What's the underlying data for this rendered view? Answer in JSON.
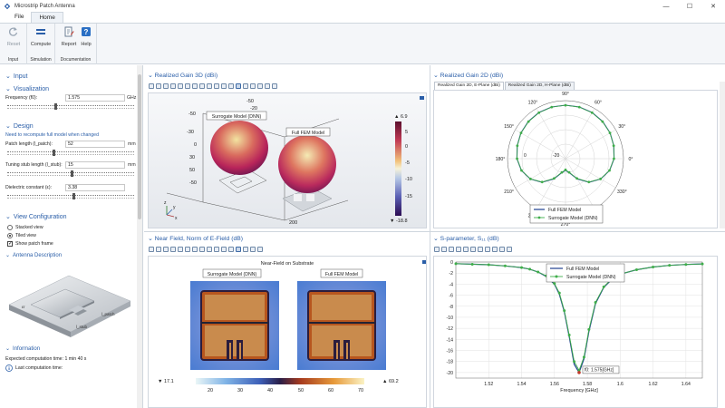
{
  "window": {
    "title": "Microstrip Patch Antenna",
    "minimize": "—",
    "maximize": "☐",
    "close": "✕"
  },
  "menu": {
    "file": "File",
    "home": "Home"
  },
  "ribbon": {
    "reset": "Reset",
    "compute": "Compute",
    "report": "Report",
    "help": "Help",
    "group_input": "Input",
    "group_simulation": "Simulation",
    "group_documentation": "Documentation"
  },
  "left": {
    "input_header": "Input",
    "visualization_header": "Visualization",
    "frequency_label": "Frequency (f0):",
    "frequency_value": "1.575",
    "frequency_unit": "GHz",
    "design_header": "Design",
    "recompute_link": "Need to recompute full model when changed",
    "patch_length_label": "Patch length (l_patch):",
    "patch_length_value": "52",
    "patch_length_unit": "mm",
    "stub_length_label": "Tuning stub length (l_stub):",
    "stub_length_value": "15",
    "stub_length_unit": "mm",
    "dielectric_label": "Dielectric constant (ε):",
    "dielectric_value": "3.38",
    "view_header": "View Configuration",
    "stacked": "Stacked view",
    "tiled": "Tiled view",
    "show_frame": "Show patch frame",
    "antenna_header": "Antenna Description",
    "lbl_patch": "l_patch",
    "lbl_stub": "l_stub",
    "lbl_e": "εr",
    "info_header": "Information",
    "expected_time": "Expected computation time: 1 min 40 s",
    "last_time": "Last computation time:"
  },
  "gain3d": {
    "title": "Realized Gain 3D (dBi)",
    "dnn_label": "Surrogate Model (DNN)",
    "fem_label": "Full FEM Model",
    "axis_ticks": [
      "-50",
      "-30",
      "30",
      "50",
      "-50",
      "0",
      "-20",
      "-50"
    ],
    "axis_200": "200",
    "cb_top": "▲ 6.9",
    "cb_bottom": "▼ -18.8",
    "cb_ticks": [
      "5",
      "0",
      "-5",
      "-10",
      "-15"
    ],
    "x": "x",
    "y": "y",
    "z": "z"
  },
  "gain2d": {
    "title": "Realized Gain 2D (dBi)",
    "tab_e": "Realized Gain 2D, E-Plane (dBi)",
    "tab_h": "Realized Gain 2D, H-Plane (dBi)",
    "angles": [
      "90°",
      "60°",
      "30°",
      "0°",
      "330°",
      "300°",
      "270°",
      "240°",
      "210°",
      "180°",
      "150°",
      "120°"
    ],
    "radial": [
      "-20",
      "0"
    ],
    "legend_fem": "Full FEM Model",
    "legend_dnn": "Surrogate Model (DNN)"
  },
  "nearfield": {
    "title": "Near Field, Norm of E-Field (dB)",
    "plot_title": "Near-Field on Substrate",
    "dnn_label": "Surrogate Model (DNN)",
    "fem_label": "Full FEM Model",
    "cb_min": "▼ 17.1",
    "cb_max": "▲ 69.2",
    "cb_ticks": [
      "20",
      "30",
      "40",
      "50",
      "60",
      "70"
    ]
  },
  "sparam": {
    "title": "S-parameter, S₁₁ (dB)",
    "legend_fem": "Full FEM Model",
    "legend_dnn": "Surrogate Model (DNN)",
    "annotation": "f0: 1.575[GHz]",
    "xlabel": "Frequency [GHz]"
  },
  "colors": {
    "accent": "#2a5ea8",
    "fem": "#1f3f8f",
    "dnn": "#3fae4a"
  },
  "chart_data": [
    {
      "type": "line",
      "title": "S-parameter, S₁₁ (dB)",
      "xlabel": "Frequency [GHz]",
      "ylabel": "",
      "xlim": [
        1.5,
        1.65
      ],
      "ylim": [
        -21,
        0
      ],
      "xticks": [
        "1.52",
        "1.54",
        "1.56",
        "1.58",
        "1.6",
        "1.62",
        "1.64"
      ],
      "yticks": [
        "0",
        "-2",
        "-4",
        "-6",
        "-8",
        "-10",
        "-12",
        "-14",
        "-16",
        "-18",
        "-20"
      ],
      "series": [
        {
          "name": "Full FEM Model",
          "x": [
            1.5,
            1.51,
            1.52,
            1.53,
            1.54,
            1.545,
            1.55,
            1.555,
            1.56,
            1.563,
            1.566,
            1.569,
            1.572,
            1.575,
            1.578,
            1.581,
            1.585,
            1.59,
            1.595,
            1.6,
            1.61,
            1.62,
            1.63,
            1.64,
            1.65
          ],
          "y": [
            -0.3,
            -0.4,
            -0.5,
            -0.7,
            -1.0,
            -1.3,
            -1.8,
            -2.6,
            -4.0,
            -5.8,
            -9.0,
            -13.5,
            -18.5,
            -20.0,
            -17.5,
            -12.5,
            -7.5,
            -4.6,
            -3.1,
            -2.2,
            -1.4,
            -0.9,
            -0.6,
            -0.45,
            -0.35
          ]
        },
        {
          "name": "Surrogate Model (DNN)",
          "x": [
            1.5,
            1.51,
            1.52,
            1.53,
            1.54,
            1.545,
            1.55,
            1.555,
            1.56,
            1.563,
            1.566,
            1.569,
            1.572,
            1.575,
            1.578,
            1.581,
            1.585,
            1.59,
            1.595,
            1.6,
            1.61,
            1.62,
            1.63,
            1.64,
            1.65
          ],
          "y": [
            -0.3,
            -0.4,
            -0.5,
            -0.7,
            -1.0,
            -1.3,
            -1.8,
            -2.5,
            -3.9,
            -5.6,
            -8.8,
            -13.2,
            -18.0,
            -19.6,
            -17.2,
            -12.2,
            -7.3,
            -4.5,
            -3.0,
            -2.2,
            -1.4,
            -0.9,
            -0.6,
            -0.45,
            -0.35
          ]
        }
      ]
    },
    {
      "type": "line",
      "title": "Realized Gain 2D, E-Plane (dBi)",
      "polar": true,
      "rlim": [
        -30,
        10
      ],
      "rticks": [
        "-20",
        "0"
      ],
      "series": [
        {
          "name": "Full FEM Model",
          "theta": [
            0,
            15,
            30,
            45,
            60,
            75,
            90,
            105,
            120,
            135,
            150,
            165,
            180,
            195,
            210,
            225,
            240,
            255,
            270,
            285,
            300,
            315,
            330,
            345
          ],
          "r": [
            3.5,
            4.5,
            5.5,
            6.2,
            6.7,
            6.9,
            6.9,
            6.9,
            6.7,
            6.2,
            5.5,
            4.5,
            3.5,
            1.5,
            -2,
            -7,
            -14,
            -20,
            -22,
            -20,
            -14,
            -7,
            -2,
            1.5
          ]
        },
        {
          "name": "Surrogate Model (DNN)",
          "theta": [
            0,
            15,
            30,
            45,
            60,
            75,
            90,
            105,
            120,
            135,
            150,
            165,
            180,
            195,
            210,
            225,
            240,
            255,
            270,
            285,
            300,
            315,
            330,
            345
          ],
          "r": [
            3.4,
            4.4,
            5.4,
            6.1,
            6.6,
            6.8,
            6.8,
            6.8,
            6.6,
            6.1,
            5.4,
            4.4,
            3.4,
            1.4,
            -2.1,
            -7.2,
            -14.3,
            -20.2,
            -22.3,
            -20.2,
            -14.3,
            -7.2,
            -2.1,
            1.4
          ]
        }
      ]
    }
  ]
}
